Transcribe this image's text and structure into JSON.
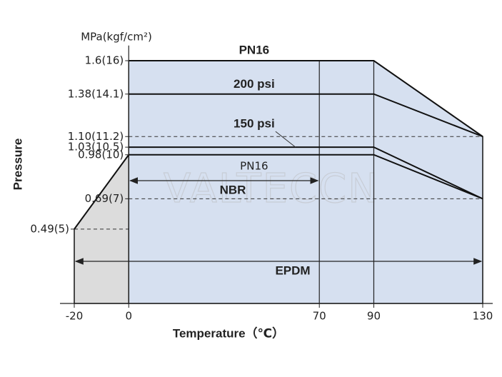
{
  "chart_data": {
    "type": "line",
    "y_label": "MPa(kgf/cm²)",
    "y_title": "Pressure",
    "x_title": "Temperature（℃）",
    "xlim": [
      -20,
      130
    ],
    "xticks": [
      -20,
      0,
      70,
      90,
      130
    ],
    "ylim": [
      0,
      1.7
    ],
    "yticks": [
      {
        "value": 1.6,
        "label": "1.6(16)"
      },
      {
        "value": 1.38,
        "label": "1.38(14.1)"
      },
      {
        "value": 1.1,
        "label": "1.10(11.2)"
      },
      {
        "value": 1.03,
        "label": "1.03(10.5)"
      },
      {
        "value": 0.98,
        "label": "0.98(10)"
      },
      {
        "value": 0.69,
        "label": "0.69(7)"
      },
      {
        "value": 0.49,
        "label": "0.49(5)"
      }
    ],
    "series": [
      {
        "name": "PN16",
        "color": "#111111",
        "fill": "#d6e0f0",
        "x": [
          0,
          90,
          130
        ],
        "values": [
          1.6,
          1.6,
          1.1
        ]
      },
      {
        "name": "200 psi",
        "color": "#111111",
        "x": [
          0,
          90,
          130
        ],
        "values": [
          1.38,
          1.38,
          1.1
        ]
      },
      {
        "name": "150 psi",
        "color": "#111111",
        "x": [
          0,
          90,
          130
        ],
        "values": [
          1.03,
          1.03,
          0.69
        ]
      },
      {
        "name": "PN16",
        "color": "#111111",
        "x": [
          0,
          90,
          130
        ],
        "values": [
          0.98,
          0.98,
          0.69
        ]
      },
      {
        "color": "#111111",
        "fill": "#dcdcdc",
        "x": [
          -20,
          0
        ],
        "values": [
          0.49,
          0.98
        ]
      }
    ],
    "dividers": [
      70,
      90
    ],
    "guides": [
      {
        "y": 1.1,
        "x": [
          0,
          130
        ]
      },
      {
        "y": 0.69,
        "x": [
          0,
          130
        ]
      },
      {
        "y": 0.49,
        "x": [
          -20,
          0
        ]
      }
    ],
    "ranges": [
      {
        "label": "NBR",
        "from": 0,
        "to": 70
      },
      {
        "label": "EPDM",
        "from": -20,
        "to": 130
      }
    ],
    "watermark": "VALTECCN"
  }
}
